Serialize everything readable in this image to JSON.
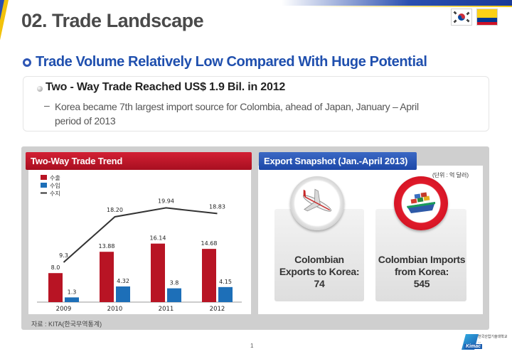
{
  "header": {
    "title": "02. Trade Landscape"
  },
  "section": {
    "title": "Trade Volume Relatively Low Compared With Huge Potential"
  },
  "summary": {
    "heading": "Two - Way Trade Reached US$ 1.9 Bil. in 2012",
    "dash": "–",
    "detail": "Korea became 7th largest import source for Colombia, ahead of Japan, January – April period of 2013"
  },
  "left_panel": {
    "title": "Two-Way Trade Trend",
    "source": "자료 : KITA(한국무역통계)"
  },
  "right_panel": {
    "title": "Export Snapshot (Jan.-April 2013)",
    "unit": "(단위 : 억 달러)",
    "cards": [
      {
        "label_line1": "Colombian",
        "label_line2": "Exports to Korea:",
        "value": "74"
      },
      {
        "label_line1": "Colombian Imports",
        "label_line2": "from Korea:",
        "value": "545"
      }
    ]
  },
  "footer": {
    "page_number": "1",
    "logo_text": "Kimac",
    "logo_org": "한국산업기술대학교 ..."
  },
  "colors": {
    "export_bar": "#b81424",
    "import_bar": "#1d6fb8",
    "balance_line": "#333333",
    "title_blue": "#1f4fae"
  },
  "chart_data": {
    "type": "bar",
    "categories": [
      "2009",
      "2010",
      "2011",
      "2012"
    ],
    "series": [
      {
        "name": "수출",
        "type": "bar",
        "values": [
          8.0,
          13.88,
          16.14,
          14.68
        ],
        "labels": [
          "8.0",
          "13.88",
          "16.14",
          "14.68"
        ]
      },
      {
        "name": "수입",
        "type": "bar",
        "values": [
          1.3,
          4.32,
          3.8,
          4.15
        ],
        "labels": [
          "1.3",
          "4.32",
          "3.8",
          "4.15"
        ]
      },
      {
        "name": "수지",
        "type": "line",
        "values": [
          9.3,
          18.2,
          19.94,
          18.83
        ],
        "labels": [
          "9.3",
          "18.20",
          "19.94",
          "18.83"
        ]
      }
    ],
    "legend_position": "top-left",
    "grid": false
  }
}
